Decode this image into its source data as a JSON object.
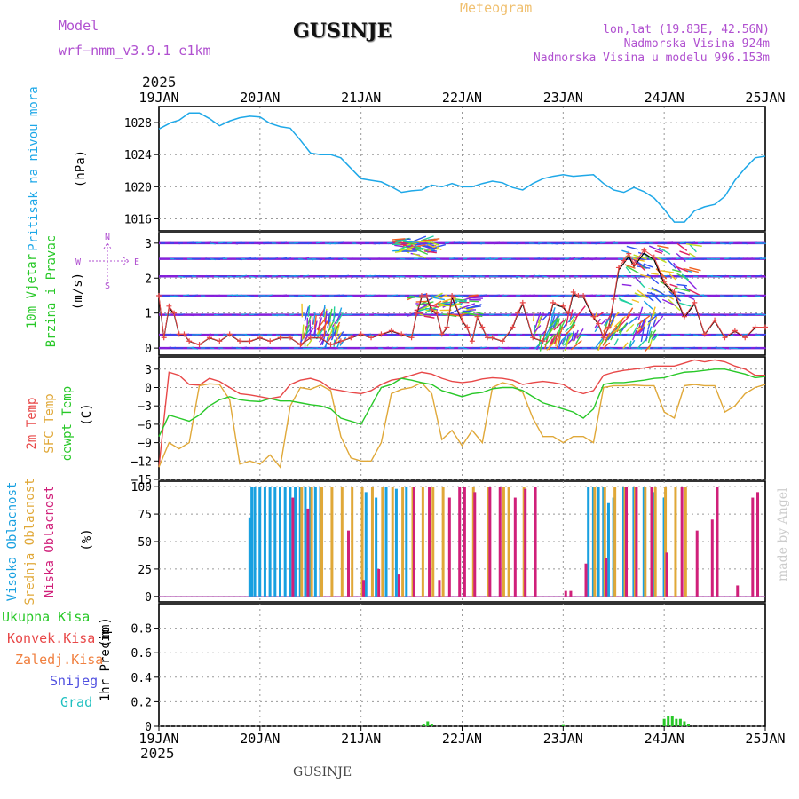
{
  "header": {
    "model_label": "Model",
    "model_name": "wrf−nmm_v3.9.1 e1km",
    "title": "GUSINJE",
    "product": "Meteogram",
    "lonlat": "lon,lat (19.83E, 42.56N)",
    "altitude": "Nadmorska Visina 924m",
    "model_altitude": "Nadmorska Visina u modelu 996.153m"
  },
  "footer": {
    "location": "GUSINJE",
    "credit": "made by Angel"
  },
  "colors": {
    "pressure": "#1ea8e8",
    "t2m": "#e84848",
    "sfc": "#e0a838",
    "dew": "#28c828",
    "cloud_high": "#18a0e0",
    "cloud_mid": "#e0a838",
    "cloud_low": "#d0207a",
    "wind_label": "#28c828",
    "precip_total": "#28c828",
    "precip_conv": "#e84848",
    "precip_frz": "#f08040",
    "precip_snow": "#5050e0",
    "precip_hail": "#20c0c0",
    "grid": "#999999",
    "axis_purple": "#b050d0"
  },
  "chart_data": [
    {
      "type": "line",
      "panel": "pressure",
      "ylabel_main": "Pritisak na nivou mora",
      "ylabel_unit": "(hPa)",
      "x_ticks": [
        "19JAN",
        "20JAN",
        "21JAN",
        "22JAN",
        "23JAN",
        "24JAN",
        "25JAN"
      ],
      "year_top": "2025",
      "year_bottom": "2025",
      "ylim": [
        1014.5,
        1030
      ],
      "y_ticks": [
        "1016",
        "1020",
        "1024",
        "1028"
      ],
      "y_tick_values": [
        1016,
        1020,
        1024,
        1028
      ],
      "x": [
        0,
        0.06,
        0.12,
        0.2,
        0.3,
        0.4,
        0.5,
        0.6,
        0.7,
        0.8,
        0.9,
        1.0,
        1.1,
        1.2,
        1.3,
        1.4,
        1.5,
        1.6,
        1.7,
        1.8,
        1.9,
        2.0,
        2.1,
        2.2,
        2.3,
        2.4,
        2.5,
        2.6,
        2.7,
        2.8,
        2.9,
        3.0,
        3.1,
        3.2,
        3.3,
        3.4,
        3.5,
        3.6,
        3.7,
        3.8,
        3.9,
        4.0,
        4.1,
        4.2,
        4.3,
        4.4,
        4.5,
        4.6,
        4.7,
        4.8,
        4.9,
        5.0,
        5.1,
        5.2,
        5.3,
        5.4,
        5.5,
        5.6,
        5.7,
        5.8,
        5.9,
        6.0
      ],
      "values": [
        1027.2,
        1027.6,
        1028,
        1028.3,
        1029.2,
        1029.2,
        1028.5,
        1027.6,
        1028.2,
        1028.6,
        1028.8,
        1028.7,
        1027.9,
        1027.5,
        1027.3,
        1025.8,
        1024.2,
        1024,
        1024,
        1023.6,
        1022.3,
        1021,
        1020.8,
        1020.6,
        1020,
        1019.3,
        1019.5,
        1019.6,
        1020.2,
        1020,
        1020.4,
        1020,
        1020,
        1020.4,
        1020.7,
        1020.5,
        1019.9,
        1019.6,
        1020.4,
        1021,
        1021.3,
        1021.5,
        1021.3,
        1021.4,
        1021.5,
        1020.4,
        1019.6,
        1019.3,
        1019.9,
        1019.4,
        1018.6,
        1017.2,
        1015.6,
        1015.6,
        1017,
        1017.5,
        1017.8,
        1018.8,
        1020.8,
        1022.3,
        1023.6,
        1023.8
      ]
    },
    {
      "type": "line",
      "panel": "wind",
      "ylabel_main": "10m Vjetar",
      "ylabel_sub": "Brzina i Pravac",
      "ylabel_unit": "(m/s)",
      "compass": [
        "N",
        "W",
        "E",
        "S"
      ],
      "ylim": [
        -0.2,
        3.3
      ],
      "y_ticks": [
        "0",
        "1",
        "2",
        "3"
      ],
      "y_tick_values": [
        0,
        1,
        2,
        3
      ],
      "x": [
        0,
        0.05,
        0.1,
        0.15,
        0.2,
        0.25,
        0.3,
        0.4,
        0.5,
        0.6,
        0.7,
        0.8,
        0.9,
        1.0,
        1.1,
        1.2,
        1.3,
        1.4,
        1.5,
        1.6,
        1.7,
        1.8,
        1.9,
        2.0,
        2.1,
        2.2,
        2.3,
        2.4,
        2.5,
        2.55,
        2.6,
        2.65,
        2.7,
        2.75,
        2.8,
        2.85,
        2.9,
        3.0,
        3.05,
        3.1,
        3.15,
        3.2,
        3.25,
        3.3,
        3.4,
        3.5,
        3.55,
        3.6,
        3.7,
        3.8,
        3.9,
        4.0,
        4.05,
        4.1,
        4.15,
        4.2,
        4.3,
        4.35,
        4.4,
        4.45,
        4.5,
        4.55,
        4.6,
        4.65,
        4.7,
        4.8,
        4.9,
        5.0,
        5.1,
        5.2,
        5.3,
        5.4,
        5.5,
        5.6,
        5.7,
        5.8,
        5.9,
        6.0
      ],
      "values": [
        1.5,
        0.3,
        1.2,
        1.0,
        0.4,
        0.4,
        0.2,
        0.1,
        0.3,
        0.2,
        0.4,
        0.2,
        0.2,
        0.3,
        0.2,
        0.3,
        0.3,
        0.1,
        0.3,
        0.3,
        0.1,
        0.2,
        0.3,
        0.4,
        0.3,
        0.4,
        0.5,
        0.4,
        0.3,
        1.0,
        1.5,
        1.5,
        1.1,
        1.0,
        0.4,
        0.6,
        1.5,
        0.8,
        0.6,
        0.2,
        0.9,
        0.6,
        0.3,
        0.3,
        0.2,
        0.6,
        1.0,
        1.3,
        0.3,
        0.2,
        1.3,
        1.2,
        1.0,
        1.6,
        1.5,
        1.5,
        0.9,
        0.7,
        0.3,
        0.6,
        1.4,
        2.3,
        2.5,
        2.7,
        2.4,
        2.8,
        2.6,
        1.9,
        1.6,
        0.9,
        1.3,
        0.4,
        0.8,
        0.3,
        0.5,
        0.3,
        0.6,
        0.6
      ]
    },
    {
      "type": "line",
      "panel": "temperature",
      "ylabel_t2m": "2m Temp",
      "ylabel_sfc": "SFC Temp",
      "ylabel_dew": "dewpt Temp",
      "ylabel_unit": "(C)",
      "ylim": [
        -15,
        5
      ],
      "y_ticks": [
        "3",
        "0",
        "−3",
        "−6",
        "−9",
        "−12",
        "−15"
      ],
      "y_tick_values": [
        3,
        0,
        -3,
        -6,
        -9,
        -12,
        -15
      ],
      "x": [
        0,
        0.1,
        0.2,
        0.3,
        0.4,
        0.5,
        0.6,
        0.7,
        0.8,
        0.9,
        1.0,
        1.1,
        1.2,
        1.3,
        1.4,
        1.5,
        1.6,
        1.7,
        1.8,
        1.9,
        2.0,
        2.1,
        2.2,
        2.3,
        2.4,
        2.5,
        2.6,
        2.7,
        2.8,
        2.9,
        3.0,
        3.1,
        3.2,
        3.3,
        3.4,
        3.5,
        3.6,
        3.7,
        3.8,
        3.9,
        4.0,
        4.1,
        4.2,
        4.3,
        4.4,
        4.5,
        4.6,
        4.7,
        4.8,
        4.9,
        5.0,
        5.1,
        5.2,
        5.3,
        5.4,
        5.5,
        5.6,
        5.7,
        5.8,
        5.9,
        6.0
      ],
      "series": [
        {
          "name": "2m Temp",
          "values": [
            -13,
            2.5,
            2,
            0.5,
            0.4,
            1.5,
            1,
            0,
            -1,
            -1.2,
            -1.5,
            -1.8,
            -1.5,
            0.5,
            1.2,
            1.5,
            1,
            -0.2,
            -0.5,
            -0.8,
            -1,
            -0.5,
            0.5,
            1.2,
            1.5,
            2,
            2.5,
            2.2,
            1.5,
            1,
            0.8,
            1,
            1.4,
            1.6,
            1.5,
            1.2,
            0.5,
            0.8,
            1,
            0.8,
            0.5,
            -0.5,
            -1,
            -0.5,
            2,
            2.5,
            2.8,
            3,
            3.2,
            3.5,
            3.5,
            3.5,
            4,
            4.5,
            4.2,
            4.5,
            4.2,
            3.5,
            3,
            2,
            2
          ]
        },
        {
          "name": "SFC Temp",
          "values": [
            -13,
            -9,
            -10,
            -9,
            0.3,
            0.6,
            0.5,
            -2,
            -12.5,
            -12,
            -12.5,
            -11,
            -13,
            -3,
            0,
            -0.3,
            0.4,
            -0.5,
            -8,
            -11.5,
            -12,
            -12,
            -9,
            -1,
            -0.3,
            0,
            0.8,
            -1,
            -8.5,
            -7,
            -9.5,
            -7,
            -9,
            0,
            0.8,
            0.4,
            -0.8,
            -5,
            -8,
            -8,
            -9,
            -8,
            -8,
            -9,
            0,
            0.3,
            0.3,
            0.4,
            0.3,
            0.3,
            -4,
            -5,
            0.3,
            0.5,
            0.3,
            0.3,
            -4,
            -3,
            -1,
            0,
            0.5
          ]
        },
        {
          "name": "dewpt Temp",
          "values": [
            -8,
            -4.5,
            -5,
            -5.5,
            -4.5,
            -3,
            -2,
            -1.5,
            -2,
            -2.2,
            -2.3,
            -1.8,
            -2.2,
            -2.2,
            -2.5,
            -2.8,
            -3,
            -3.5,
            -5,
            -5.5,
            -6,
            -3,
            0,
            0.5,
            1.5,
            1.2,
            0.8,
            0.5,
            -0.5,
            -1,
            -1.5,
            -1,
            -0.8,
            -0.2,
            0,
            0,
            -0.5,
            -1.5,
            -2.5,
            -3,
            -3.5,
            -4,
            -5,
            -3.5,
            0.5,
            0.8,
            0.8,
            1,
            1.2,
            1.5,
            1.6,
            2.1,
            2.5,
            2.6,
            2.8,
            3,
            3,
            2.6,
            2.2,
            1.6,
            1.8
          ]
        }
      ]
    },
    {
      "type": "bar",
      "panel": "cloud",
      "ylabel_high": "Visoka Oblacnost",
      "ylabel_mid": "Srednja Oblacnost",
      "ylabel_low": "Niska Oblacnost",
      "ylabel_unit": "(%)",
      "ylim": [
        -5,
        105
      ],
      "y_ticks": [
        "0",
        "25",
        "50",
        "75",
        "100"
      ],
      "y_tick_values": [
        0,
        25,
        50,
        75,
        100
      ],
      "series": [
        {
          "name": "Visoka Oblacnost",
          "x": [
            0.9,
            0.92,
            0.95,
            1.0,
            1.05,
            1.1,
            1.15,
            1.2,
            1.25,
            1.3,
            1.35,
            1.4,
            1.45,
            1.5,
            1.55,
            1.6,
            2.05,
            2.15,
            2.25,
            2.35,
            2.45,
            4.25,
            4.3,
            4.35,
            4.4,
            4.45,
            4.5,
            4.6,
            4.7,
            4.8,
            4.9,
            5.0
          ],
          "values": [
            72,
            100,
            100,
            100,
            100,
            100,
            100,
            100,
            100,
            100,
            100,
            100,
            100,
            100,
            100,
            100,
            95,
            90,
            100,
            98,
            100,
            100,
            100,
            100,
            100,
            85,
            90,
            100,
            100,
            100,
            95,
            90
          ]
        },
        {
          "name": "Srednja Oblacnost",
          "x": [
            1.4,
            1.5,
            1.6,
            1.7,
            1.8,
            1.9,
            2.0,
            2.1,
            2.2,
            2.3,
            2.4,
            2.5,
            2.6,
            2.7,
            2.8,
            3.1,
            3.25,
            3.4,
            3.45,
            3.6,
            4.3,
            4.4,
            4.5,
            4.6,
            4.7,
            4.8,
            4.9,
            5.0,
            5.1,
            5.2
          ],
          "values": [
            100,
            100,
            100,
            100,
            100,
            100,
            100,
            100,
            100,
            100,
            100,
            100,
            100,
            100,
            100,
            100,
            100,
            100,
            100,
            100,
            100,
            100,
            100,
            100,
            100,
            100,
            100,
            100,
            100,
            100
          ]
        },
        {
          "name": "Niska Oblacnost",
          "x": [
            1.3,
            1.45,
            1.85,
            2.0,
            2.15,
            2.35,
            2.5,
            2.65,
            2.75,
            2.85,
            2.95,
            3.0,
            3.1,
            3.25,
            3.35,
            3.5,
            3.6,
            3.7,
            4.0,
            4.05,
            4.2,
            4.4,
            4.6,
            4.7,
            4.85,
            5.0,
            5.15,
            5.3,
            5.45,
            5.5,
            5.7,
            5.85,
            5.9
          ],
          "values": [
            90,
            80,
            60,
            15,
            25,
            20,
            100,
            100,
            15,
            90,
            100,
            100,
            95,
            100,
            100,
            90,
            98,
            100,
            5,
            5,
            30,
            35,
            100,
            100,
            100,
            40,
            100,
            60,
            70,
            100,
            10,
            90,
            95
          ]
        }
      ]
    },
    {
      "type": "bar",
      "panel": "precip",
      "legend": [
        "Ukupna Kisa",
        "Konvek.Kisa",
        "Zaledj.Kisa",
        "Snijeg",
        "Grad"
      ],
      "ylabel_main": "1hr Precip",
      "ylabel_unit": "(mm)",
      "ylim": [
        0,
        1.0
      ],
      "y_ticks": [
        "0",
        "0.2",
        "0.4",
        "0.6",
        "0.8"
      ],
      "y_tick_values": [
        0,
        0.2,
        0.4,
        0.6,
        0.8
      ],
      "x": [
        2.62,
        2.66,
        2.7,
        4.0,
        5.0,
        5.04,
        5.08,
        5.12,
        5.16,
        5.2,
        5.24
      ],
      "values": [
        0.02,
        0.04,
        0.02,
        0.01,
        0.06,
        0.08,
        0.08,
        0.06,
        0.06,
        0.04,
        0.02
      ]
    }
  ]
}
